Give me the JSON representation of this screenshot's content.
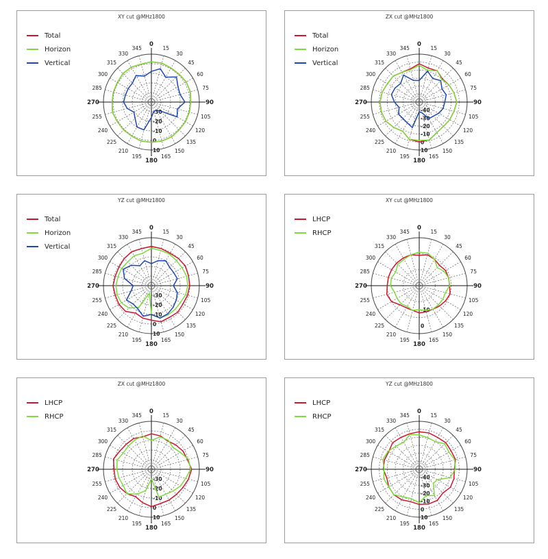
{
  "chart_data": [
    {
      "type": "polar-line",
      "title": "XY cut @MHz1800",
      "angles": [
        0,
        15,
        30,
        45,
        60,
        75,
        90,
        105,
        120,
        135,
        150,
        165,
        180,
        195,
        210,
        225,
        240,
        255,
        270,
        285,
        300,
        315,
        330,
        345
      ],
      "angle_labels": [
        "0",
        "15",
        "30",
        "45",
        "60",
        "75",
        "90",
        "105",
        "120",
        "135",
        "150",
        "165",
        "180",
        "195",
        "210",
        "225",
        "240",
        "255",
        "270",
        "285",
        "300",
        "315",
        "330",
        "345"
      ],
      "radial_labels": [
        "-30",
        "-20",
        "-10",
        "0",
        "10"
      ],
      "rlim": [
        -40,
        10
      ],
      "legend_position": "top-left",
      "series": [
        {
          "name": "Total",
          "color": "#d0142c",
          "values": [
            2,
            2,
            1,
            1,
            2,
            2,
            1,
            1,
            1,
            1,
            2,
            2,
            2,
            2,
            1,
            1,
            1,
            2,
            1,
            1,
            1,
            2,
            2,
            1
          ]
        },
        {
          "name": "Horizon",
          "color": "#7cdc3c",
          "values": [
            2,
            2,
            1,
            1,
            2,
            2,
            1,
            1,
            1,
            1,
            2,
            2,
            2,
            2,
            1,
            1,
            1,
            2,
            1,
            1,
            1,
            2,
            2,
            1
          ]
        },
        {
          "name": "Vertical",
          "color": "#1a46b4",
          "values": [
            -8,
            -4,
            -10,
            -3,
            -8,
            -9,
            -5,
            -12,
            -9,
            -27,
            -30,
            -30,
            -24,
            -10,
            -10,
            -16,
            -19,
            -14,
            -11,
            -12,
            -12,
            -12,
            -8,
            -12
          ]
        }
      ]
    },
    {
      "type": "polar-line",
      "title": "ZX cut @MHz1800",
      "angles": [
        0,
        15,
        30,
        45,
        60,
        75,
        90,
        105,
        120,
        135,
        150,
        165,
        180,
        195,
        210,
        225,
        240,
        255,
        270,
        285,
        300,
        315,
        330,
        345
      ],
      "angle_labels": [
        "0",
        "15",
        "30",
        "45",
        "60",
        "75",
        "90",
        "105",
        "120",
        "135",
        "150",
        "165",
        "180",
        "195",
        "210",
        "225",
        "240",
        "255",
        "270",
        "285",
        "300",
        "315",
        "330",
        "345"
      ],
      "radial_labels": [
        "-40",
        "-30",
        "-20",
        "-10",
        "0",
        "10"
      ],
      "rlim": [
        -50,
        10
      ],
      "legend_position": "top-left",
      "series": [
        {
          "name": "Total",
          "color": "#d0142c",
          "values": [
            -2,
            -6,
            -5,
            -9,
            -7,
            -5,
            -3,
            -5,
            -6,
            -7,
            -6,
            -1,
            0,
            -2,
            -8,
            -5,
            -2,
            -1,
            -1,
            -2,
            -4,
            -4,
            -7,
            -7
          ]
        },
        {
          "name": "Horizon",
          "color": "#7cdc3c",
          "values": [
            -4,
            -9,
            -5,
            -10,
            -7,
            -5,
            -3,
            -5,
            -6,
            -7,
            -6,
            -1,
            -2,
            -2,
            -8,
            -5,
            -2,
            -1,
            -1,
            -2,
            -4,
            -4,
            -7,
            -8
          ]
        },
        {
          "name": "Vertical",
          "color": "#1a46b4",
          "values": [
            -23,
            -10,
            -16,
            -12,
            -17,
            -15,
            -18,
            -19,
            -22,
            -25,
            -26,
            -36,
            -38,
            -17,
            -20,
            -21,
            -20,
            -24,
            -19,
            -14,
            -15,
            -17,
            -11,
            -22
          ]
        }
      ]
    },
    {
      "type": "polar-line",
      "title": "YZ cut @MHz1800",
      "angles": [
        0,
        15,
        30,
        45,
        60,
        75,
        90,
        105,
        120,
        135,
        150,
        165,
        180,
        195,
        210,
        225,
        240,
        255,
        270,
        285,
        300,
        315,
        330,
        345
      ],
      "angle_labels": [
        "0",
        "15",
        "30",
        "45",
        "60",
        "75",
        "90",
        "105",
        "120",
        "135",
        "150",
        "165",
        "180",
        "195",
        "210",
        "225",
        "240",
        "255",
        "270",
        "285",
        "300",
        "315",
        "330",
        "345"
      ],
      "radial_labels": [
        "-30",
        "-20",
        "-10",
        "0",
        "10"
      ],
      "rlim": [
        -40,
        10
      ],
      "legend_position": "top-left",
      "series": [
        {
          "name": "Total",
          "color": "#d0142c",
          "values": [
            1,
            0,
            -1,
            0,
            1,
            0,
            0,
            -1,
            -2,
            -1,
            -2,
            -1,
            -4,
            -5,
            -7,
            -2,
            -1,
            -1,
            0,
            -1,
            -1,
            0,
            1,
            0
          ]
        },
        {
          "name": "Horizon",
          "color": "#7cdc3c",
          "values": [
            -1,
            -2,
            -2,
            -3,
            -3,
            -2,
            -2,
            -3,
            -5,
            -5,
            -5,
            -5,
            -10,
            -32,
            -14,
            -7,
            -4,
            -3,
            -3,
            -4,
            -4,
            -5,
            -4,
            -5
          ]
        },
        {
          "name": "Vertical",
          "color": "#1a46b4",
          "values": [
            -17,
            -13,
            -10,
            -13,
            -13,
            -12,
            -17,
            -12,
            -10,
            -8,
            -6,
            -5,
            -10,
            -7,
            -12,
            -13,
            -10,
            -18,
            -21,
            -11,
            -6,
            -10,
            -16,
            -13
          ]
        }
      ]
    },
    {
      "type": "polar-line",
      "title": "XY cut @MHz1800",
      "angles": [
        0,
        15,
        30,
        45,
        60,
        75,
        90,
        105,
        120,
        135,
        150,
        165,
        180,
        195,
        210,
        225,
        240,
        255,
        270,
        285,
        300,
        315,
        330,
        345
      ],
      "angle_labels": [
        "0",
        "15",
        "30",
        "45",
        "60",
        "75",
        "90",
        "105",
        "120",
        "135",
        "150",
        "165",
        "180",
        "195",
        "210",
        "225",
        "240",
        "255",
        "270",
        "285",
        "300",
        "315",
        "330",
        "345"
      ],
      "radial_labels": [
        "-10",
        "0"
      ],
      "rlim": [
        -25,
        5
      ],
      "legend_position": "top-left",
      "series": [
        {
          "name": "LHCP",
          "color": "#d0142c",
          "values": [
            -6,
            -5,
            -6,
            -7,
            -6,
            -6,
            -6,
            -5,
            -6,
            -7,
            -8,
            -8,
            -8,
            -9,
            -9,
            -8,
            -5,
            -4,
            -5,
            -5,
            -5,
            -5,
            -5,
            -5
          ]
        },
        {
          "name": "RHCP",
          "color": "#7cdc3c",
          "values": [
            -4,
            -4,
            -6,
            -9,
            -7,
            -6,
            -6,
            -8,
            -8,
            -8,
            -8,
            -9,
            -10,
            -9,
            -10,
            -9,
            -9,
            -9,
            -7,
            -7,
            -8,
            -6,
            -6,
            -5
          ]
        }
      ]
    },
    {
      "type": "polar-line",
      "title": "ZX cut @MHz1800",
      "angles": [
        0,
        15,
        30,
        45,
        60,
        75,
        90,
        105,
        120,
        135,
        150,
        165,
        180,
        195,
        210,
        225,
        240,
        255,
        270,
        285,
        300,
        315,
        330,
        345
      ],
      "angle_labels": [
        "0",
        "15",
        "30",
        "45",
        "60",
        "75",
        "90",
        "105",
        "120",
        "135",
        "150",
        "165",
        "180",
        "195",
        "210",
        "225",
        "240",
        "255",
        "270",
        "285",
        "300",
        "315",
        "330",
        "345"
      ],
      "radial_labels": [
        "-30",
        "-20",
        "-10",
        "0",
        "10"
      ],
      "rlim": [
        -40,
        10
      ],
      "legend_position": "top-left",
      "series": [
        {
          "name": "LHCP",
          "color": "#d0142c",
          "values": [
            -3,
            -4,
            -6,
            -4,
            -2,
            -1,
            2,
            0,
            -2,
            -3,
            -3,
            -3,
            -1,
            -4,
            -7,
            -4,
            -2,
            -1,
            -1,
            1,
            -2,
            -3,
            -3,
            -5
          ]
        },
        {
          "name": "RHCP",
          "color": "#7cdc3c",
          "values": [
            -10,
            -5,
            -5,
            -8,
            -5,
            0,
            1,
            -3,
            -5,
            -8,
            -10,
            -10,
            -30,
            -17,
            -10,
            -4,
            -6,
            -5,
            -4,
            -3,
            -6,
            -6,
            -5,
            -4
          ]
        }
      ]
    },
    {
      "type": "polar-line",
      "title": "YZ cut @MHz1800",
      "angles": [
        0,
        15,
        30,
        45,
        60,
        75,
        90,
        105,
        120,
        135,
        150,
        165,
        180,
        195,
        210,
        225,
        240,
        255,
        270,
        285,
        300,
        315,
        330,
        345
      ],
      "angle_labels": [
        "0",
        "15",
        "30",
        "45",
        "60",
        "75",
        "90",
        "105",
        "120",
        "135",
        "150",
        "165",
        "180",
        "195",
        "210",
        "225",
        "240",
        "255",
        "270",
        "285",
        "300",
        "315",
        "330",
        "345"
      ],
      "radial_labels": [
        "-40",
        "-30",
        "-20",
        "-10",
        "0",
        "10"
      ],
      "rlim": [
        -50,
        10
      ],
      "legend_position": "top-left",
      "series": [
        {
          "name": "LHCP",
          "color": "#d0142c",
          "values": [
            -3,
            -3,
            -4,
            -3,
            -4,
            -3,
            -6,
            -5,
            -5,
            -8,
            -5,
            -5,
            -6,
            -8,
            -6,
            -5,
            -6,
            -8,
            -5,
            -5,
            -6,
            -3,
            -4,
            -4
          ]
        },
        {
          "name": "RHCP",
          "color": "#7cdc3c",
          "values": [
            -7,
            -9,
            -10,
            -5,
            -7,
            -4,
            -5,
            -10,
            -24,
            -25,
            -12,
            -16,
            -8,
            -12,
            -10,
            -5,
            -6,
            -4,
            -6,
            -3,
            -5,
            -9,
            -11,
            -5
          ]
        }
      ]
    }
  ]
}
